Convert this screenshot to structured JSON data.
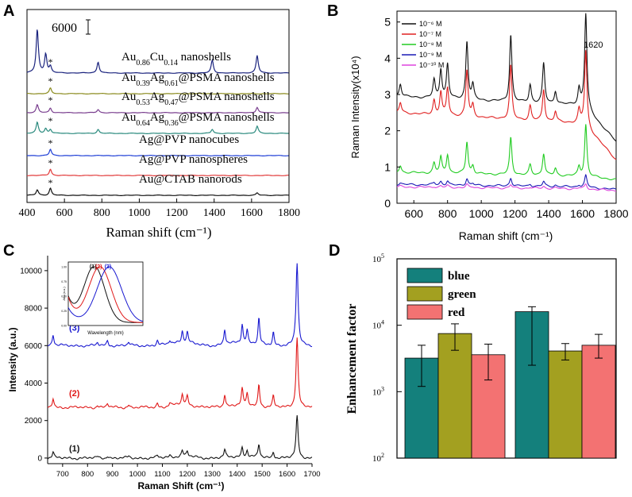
{
  "chart_data": [
    {
      "panel": "A",
      "type": "line",
      "xlabel": "Raman shift (cm⁻¹)",
      "xlim": [
        400,
        1800
      ],
      "xticks": [
        "400",
        "600",
        "800",
        "1000",
        "1200",
        "1400",
        "1600",
        "1800"
      ],
      "scale_bar": "6000",
      "star": "*",
      "series": [
        {
          "name": "Au0.86Cu0.14 nanoshells",
          "label": "Au",
          "sub1": "0.86",
          "mid": "Cu",
          "sub2": "0.14",
          "tail": " nanoshells",
          "color": "#1a237e",
          "peaks": [
            [
              455,
              55
            ],
            [
              500,
              24
            ],
            [
              525,
              8
            ],
            [
              780,
              14
            ],
            [
              1390,
              16
            ],
            [
              1630,
              22
            ]
          ]
        },
        {
          "name": "Au0.39Ag0.61@PSMA nanoshells",
          "label": "Au",
          "sub1": "0.39",
          "mid": "Ag",
          "sub2": "0.61",
          "tail": "@PSMA nanoshells",
          "color": "#8b8b1e",
          "peaks": [
            [
              525,
              7
            ]
          ]
        },
        {
          "name": "Au0.53Ag0.47@PSMA nanoshells",
          "label": "Au",
          "sub1": "0.53",
          "mid": "Ag",
          "sub2": "0.47",
          "tail": "@PSMA nanoshells",
          "color": "#7a3f8f",
          "peaks": [
            [
              455,
              10
            ],
            [
              525,
              6
            ],
            [
              780,
              4
            ],
            [
              1630,
              7
            ]
          ]
        },
        {
          "name": "Au0.64Ag0.36@PSMA nanoshells",
          "label": "Au",
          "sub1": "0.64",
          "mid": "Ag",
          "sub2": "0.36",
          "tail": "@PSMA nanoshells",
          "color": "#2a8a7e",
          "peaks": [
            [
              455,
              14
            ],
            [
              500,
              6
            ],
            [
              525,
              5
            ],
            [
              780,
              5
            ],
            [
              1390,
              5
            ],
            [
              1630,
              9
            ]
          ]
        },
        {
          "name": "Ag@PVP nanocubes",
          "label": "Ag@PVP nanocubes",
          "color": "#1f3fd6",
          "peaks": [
            [
              525,
              8
            ]
          ]
        },
        {
          "name": "Ag@PVP nanospheres",
          "label": "Ag@PVP nanospheres",
          "color": "#e23b3b",
          "peaks": [
            [
              525,
              8
            ]
          ]
        },
        {
          "name": "Au@CTAB nanorods",
          "label": "Au@CTAB nanorods",
          "color": "#111111",
          "peaks": [
            [
              455,
              7
            ],
            [
              525,
              9
            ],
            [
              1630,
              3
            ]
          ]
        }
      ]
    },
    {
      "panel": "B",
      "type": "line",
      "xlabel": "Raman shift (cm⁻¹)",
      "ylabel": "Raman Intensity(x10⁴)",
      "xlim": [
        500,
        1800
      ],
      "ylim": [
        0,
        5.3
      ],
      "xticks": [
        600,
        800,
        1000,
        1200,
        1400,
        1600,
        1800
      ],
      "yticks": [
        0,
        1,
        2,
        3,
        4,
        5
      ],
      "annotation": "1620",
      "series": [
        {
          "name": "10⁻⁶ M",
          "base": [
            2.95,
            2.7,
            1.7
          ],
          "scale": 1.0,
          "color": "#111111"
        },
        {
          "name": "10⁻⁷ M",
          "base": [
            2.5,
            2.2,
            1.2
          ],
          "scale": 0.8,
          "color": "#e02020"
        },
        {
          "name": "10⁻⁸ M",
          "base": [
            0.85,
            0.75,
            0.65
          ],
          "scale": 0.55,
          "color": "#22cc22"
        },
        {
          "name": "10⁻⁹ M",
          "base": [
            0.52,
            0.45,
            0.38
          ],
          "scale": 0.12,
          "color": "#1a1ab5"
        },
        {
          "name": "10⁻¹⁰ M",
          "base": [
            0.45,
            0.4,
            0.35
          ],
          "scale": 0.05,
          "color": "#dd44dd"
        }
      ],
      "peaks": [
        [
          520,
          0.35
        ],
        [
          720,
          0.5
        ],
        [
          760,
          0.8
        ],
        [
          800,
          0.95
        ],
        [
          915,
          1.6
        ],
        [
          950,
          0.4
        ],
        [
          1175,
          1.85
        ],
        [
          1290,
          0.5
        ],
        [
          1370,
          1.1
        ],
        [
          1440,
          0.35
        ],
        [
          1580,
          0.45
        ],
        [
          1620,
          2.6
        ]
      ]
    },
    {
      "panel": "C",
      "type": "line",
      "xlabel": "Raman Shift (cm⁻¹)",
      "ylabel": "Intensity (a.u.)",
      "xlim": [
        640,
        1700
      ],
      "ylim": [
        -300,
        10800
      ],
      "xticks": [
        700,
        800,
        900,
        1000,
        1100,
        1200,
        1300,
        1400,
        1500,
        1600,
        1700
      ],
      "yticks": [
        0,
        2000,
        4000,
        6000,
        8000,
        10000
      ],
      "series": [
        {
          "name": "(3)",
          "offset": 6000,
          "scale": 1.0,
          "color": "#1818d0"
        },
        {
          "name": "(2)",
          "offset": 2700,
          "scale": 0.85,
          "color": "#e01818"
        },
        {
          "name": "(1)",
          "offset": 0,
          "scale": 0.5,
          "color": "#111111"
        }
      ],
      "peaks": [
        [
          662,
          600
        ],
        [
          840,
          150
        ],
        [
          880,
          250
        ],
        [
          965,
          180
        ],
        [
          1080,
          250
        ],
        [
          1130,
          200
        ],
        [
          1180,
          600
        ],
        [
          1200,
          550
        ],
        [
          1350,
          800
        ],
        [
          1420,
          1000
        ],
        [
          1440,
          700
        ],
        [
          1487,
          1400
        ],
        [
          1545,
          700
        ],
        [
          1640,
          4400
        ]
      ],
      "inset": {
        "xlabel": "Wavelength (nm)",
        "ylabel": "Abs (a.u.)",
        "yticks": [
          "0.00",
          "0.25",
          "0.50",
          "0.75",
          "1.00"
        ],
        "labels": [
          "(1)",
          "(2)",
          "(3)"
        ],
        "peak_nm": [
          640,
          670,
          720
        ],
        "colors": [
          "#111111",
          "#e01818",
          "#1818d0"
        ]
      }
    },
    {
      "panel": "D",
      "type": "bar",
      "ylabel": "Enhancement factor",
      "yscale": "log",
      "ylim": [
        100,
        100000
      ],
      "yticks": [
        {
          "exp": "2"
        },
        {
          "exp": "3"
        },
        {
          "exp": "4"
        },
        {
          "exp": "5"
        }
      ],
      "tick_base": "10",
      "series": [
        {
          "name": "blue",
          "color": "#14807c",
          "values": [
            3200,
            16000
          ],
          "err_lo": [
            1200,
            2500
          ],
          "err_hi": [
            5000,
            19000
          ]
        },
        {
          "name": "green",
          "color": "#a3a020",
          "values": [
            7500,
            4100
          ],
          "err_lo": [
            4200,
            3000
          ],
          "err_hi": [
            10500,
            5300
          ]
        },
        {
          "name": "red",
          "color": "#f37272",
          "values": [
            3600,
            5000
          ],
          "err_lo": [
            1500,
            3200
          ],
          "err_hi": [
            5200,
            7300
          ]
        }
      ]
    }
  ],
  "panel_labels": [
    "A",
    "B",
    "C",
    "D"
  ]
}
